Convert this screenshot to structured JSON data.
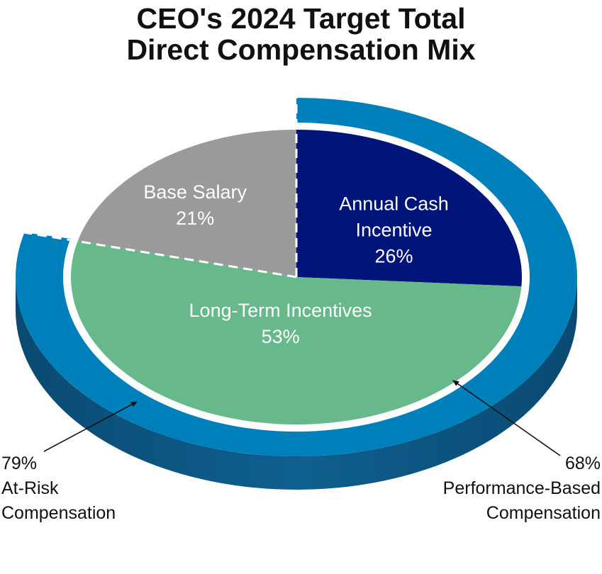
{
  "chart_data": {
    "type": "pie",
    "title": [
      "CEO's 2024 Target Total",
      "Direct Compensation Mix"
    ],
    "slices": [
      {
        "name": "Annual Cash Incentive",
        "label_lines": [
          "Annual Cash",
          "Incentive"
        ],
        "value": 26,
        "value_label": "26%",
        "color": "#00147a"
      },
      {
        "name": "Long-Term Incentives",
        "label_lines": [
          "Long-Term Incentives"
        ],
        "value": 53,
        "value_label": "53%",
        "color": "#67b98c"
      },
      {
        "name": "Base Salary",
        "label_lines": [
          "Base Salary"
        ],
        "value": 21,
        "value_label": "21%",
        "color": "#9a9a9a"
      }
    ],
    "outer_ring": {
      "covers": [
        "Annual Cash Incentive",
        "Long-Term Incentives"
      ],
      "color": "#0080bb",
      "side_color": "#0b4f79"
    },
    "annotations": [
      {
        "value_label": "79%",
        "lines": [
          "At-Risk",
          "Compensation"
        ]
      },
      {
        "value_label": "68%",
        "lines": [
          "Performance-Based",
          "Compensation"
        ]
      }
    ]
  }
}
